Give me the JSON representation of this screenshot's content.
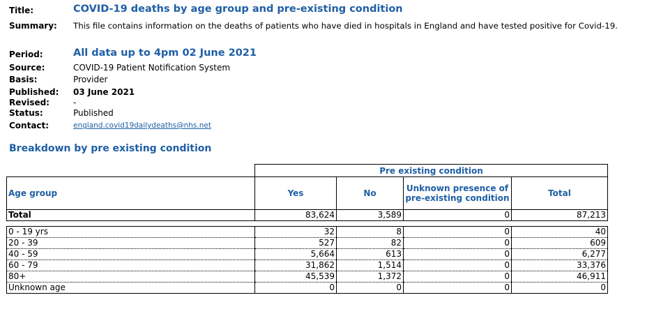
{
  "meta": {
    "title_label": "Title:",
    "title_value": "COVID-19 deaths by age group and pre-existing condition",
    "summary_label": "Summary:",
    "summary_value": "This file contains information on the deaths of patients who have died in hospitals in England and have tested positive for Covid-19.",
    "period_label": "Period:",
    "period_value": "All data up to 4pm 02 June 2021",
    "source_label": "Source:",
    "source_value": "COVID-19 Patient Notification System",
    "basis_label": "Basis:",
    "basis_value": "Provider",
    "published_label": "Published:",
    "published_value": "03 June 2021",
    "revised_label": "Revised:",
    "revised_value": "-",
    "status_label": "Status:",
    "status_value": "Published",
    "contact_label": "Contact:",
    "contact_value": "england.covid19dailydeaths@nhs.net"
  },
  "section_heading": "Breakdown by pre existing condition",
  "table": {
    "group_header": "Pre existing condition",
    "columns": {
      "age_group": "Age group",
      "yes": "Yes",
      "no": "No",
      "unknown_line1": "Unknown presence of",
      "unknown_line2": "pre-existing condition",
      "total": "Total"
    },
    "total_row": {
      "label": "Total",
      "yes": "83,624",
      "no": "3,589",
      "unknown": "0",
      "total": "87,213"
    },
    "rows": [
      {
        "label": "0 - 19 yrs",
        "yes": "32",
        "no": "8",
        "unknown": "0",
        "total": "40"
      },
      {
        "label": "20 - 39",
        "yes": "527",
        "no": "82",
        "unknown": "0",
        "total": "609"
      },
      {
        "label": "40 - 59",
        "yes": "5,664",
        "no": "613",
        "unknown": "0",
        "total": "6,277"
      },
      {
        "label": "60 - 79",
        "yes": "31,862",
        "no": "1,514",
        "unknown": "0",
        "total": "33,376"
      },
      {
        "label": "80+",
        "yes": "45,539",
        "no": "1,372",
        "unknown": "0",
        "total": "46,911"
      },
      {
        "label": "Unknown age",
        "yes": "0",
        "no": "0",
        "unknown": "0",
        "total": "0"
      }
    ]
  },
  "colors": {
    "accent": "#1f5fa5",
    "text": "#000000",
    "background": "#ffffff"
  }
}
